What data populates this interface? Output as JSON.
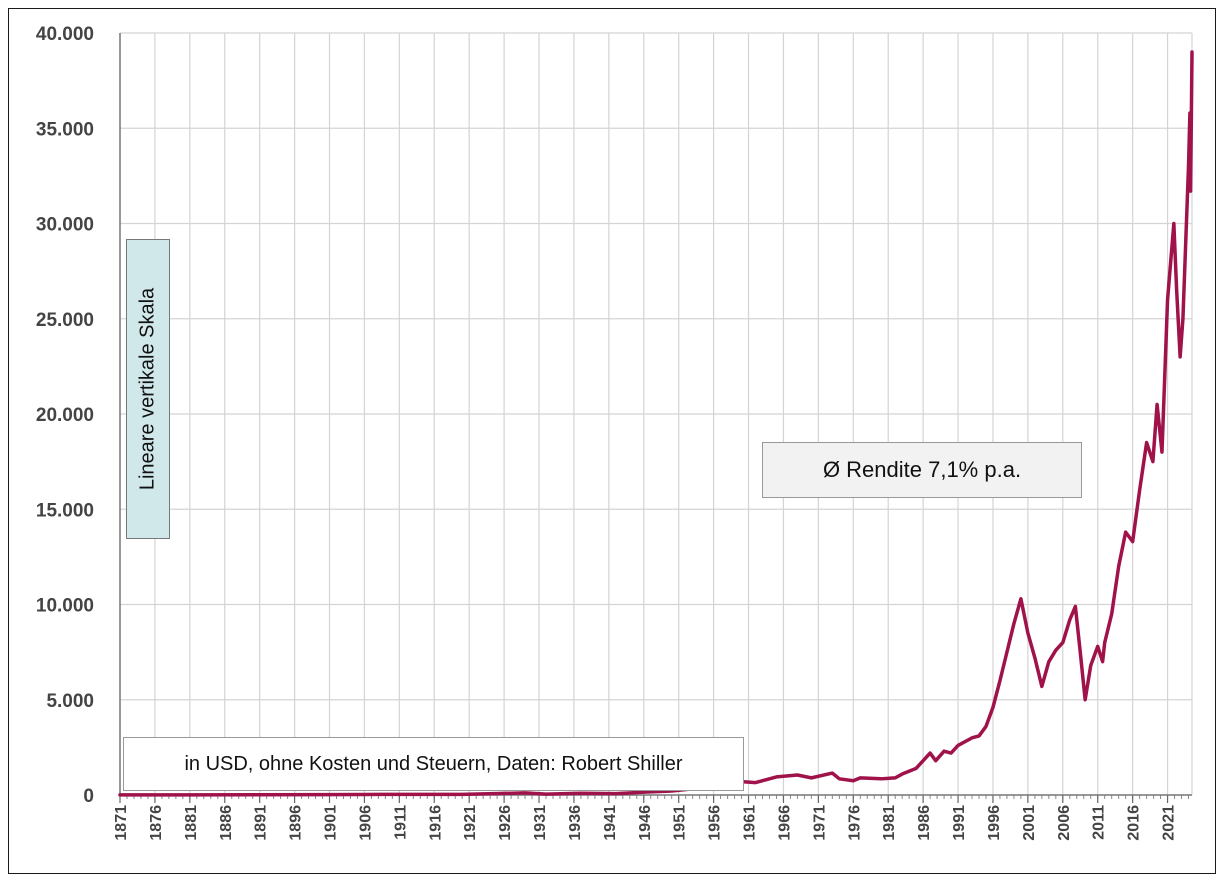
{
  "chart_data": {
    "type": "line",
    "title": "",
    "xlabel": "",
    "ylabel": "",
    "ylim": [
      0,
      40000
    ],
    "xlim": [
      1871,
      2024.5
    ],
    "grid": true,
    "y_ticks": [
      0,
      5000,
      10000,
      15000,
      20000,
      25000,
      30000,
      35000,
      40000
    ],
    "y_tick_labels": [
      "0",
      "5.000",
      "10.000",
      "15.000",
      "20.000",
      "25.000",
      "30.000",
      "35.000",
      "40.000"
    ],
    "x_tick_labels": [
      "1871",
      "1876",
      "1881",
      "1886",
      "1891",
      "1896",
      "1901",
      "1906",
      "1911",
      "1916",
      "1921",
      "1926",
      "1931",
      "1936",
      "1941",
      "1946",
      "1951",
      "1956",
      "1961",
      "1966",
      "1971",
      "1976",
      "1981",
      "1986",
      "1991",
      "1996",
      "2001",
      "2006",
      "2011",
      "2016",
      "2021"
    ],
    "series": [
      {
        "color": "#a0124a",
        "points": [
          [
            1871,
            5
          ],
          [
            1880,
            9
          ],
          [
            1890,
            12
          ],
          [
            1900,
            18
          ],
          [
            1906,
            28
          ],
          [
            1910,
            35
          ],
          [
            1920,
            30
          ],
          [
            1929,
            110
          ],
          [
            1932,
            45
          ],
          [
            1937,
            90
          ],
          [
            1942,
            70
          ],
          [
            1946,
            150
          ],
          [
            1950,
            210
          ],
          [
            1955,
            400
          ],
          [
            1957,
            500
          ],
          [
            1960,
            700
          ],
          [
            1962,
            650
          ],
          [
            1965,
            950
          ],
          [
            1968,
            1050
          ],
          [
            1970,
            900
          ],
          [
            1973,
            1150
          ],
          [
            1974,
            850
          ],
          [
            1976,
            750
          ],
          [
            1977,
            900
          ],
          [
            1980,
            850
          ],
          [
            1982,
            900
          ],
          [
            1983,
            1100
          ],
          [
            1985,
            1400
          ],
          [
            1987,
            2200
          ],
          [
            1987.8,
            1800
          ],
          [
            1989,
            2300
          ],
          [
            1990,
            2200
          ],
          [
            1991,
            2600
          ],
          [
            1993,
            3000
          ],
          [
            1994,
            3100
          ],
          [
            1995,
            3600
          ],
          [
            1996,
            4600
          ],
          [
            1997,
            6000
          ],
          [
            1998,
            7500
          ],
          [
            1999,
            9000
          ],
          [
            2000,
            10300
          ],
          [
            2001,
            8500
          ],
          [
            2002,
            7200
          ],
          [
            2003,
            5700
          ],
          [
            2004,
            7000
          ],
          [
            2005,
            7600
          ],
          [
            2006,
            8000
          ],
          [
            2007,
            9200
          ],
          [
            2007.8,
            9900
          ],
          [
            2008.5,
            7500
          ],
          [
            2009.2,
            5000
          ],
          [
            2010,
            6800
          ],
          [
            2011,
            7800
          ],
          [
            2011.7,
            7000
          ],
          [
            2012,
            8000
          ],
          [
            2013,
            9500
          ],
          [
            2014,
            12000
          ],
          [
            2015,
            13800
          ],
          [
            2016,
            13300
          ],
          [
            2017,
            16000
          ],
          [
            2018,
            18500
          ],
          [
            2018.9,
            17500
          ],
          [
            2019.5,
            20500
          ],
          [
            2020.2,
            18000
          ],
          [
            2020.6,
            22000
          ],
          [
            2021,
            26000
          ],
          [
            2021.9,
            30000
          ],
          [
            2022.3,
            26500
          ],
          [
            2022.8,
            23000
          ],
          [
            2023.2,
            25000
          ],
          [
            2023.7,
            30000
          ],
          [
            2024,
            33000
          ],
          [
            2024.2,
            35800
          ],
          [
            2024.3,
            31700
          ],
          [
            2024.5,
            39000
          ]
        ]
      }
    ],
    "annotations": {
      "scale_label": "Lineare vertikale Skala",
      "return_label": "Ø  Rendite 7,1% p.a.",
      "source_label": "in USD, ohne Kosten und Steuern, Daten: Robert Shiller"
    }
  }
}
